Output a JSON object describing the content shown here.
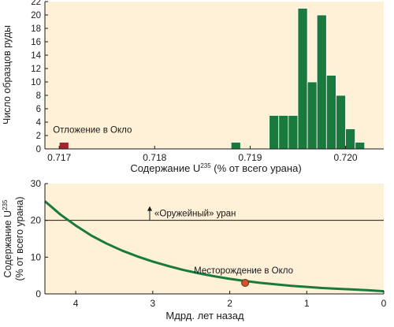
{
  "chart_data": [
    {
      "type": "bar",
      "ylabel": "Число образцов руды",
      "xlabel_prefix": "Содержание U",
      "xlabel_sup": "235",
      "xlabel_suffix": " (% от всего урана)",
      "xlim": [
        0.71685,
        0.7204
      ],
      "ylim": [
        0,
        22
      ],
      "bin_width": 0.0001,
      "x_ticks": [
        "0.717",
        "0.718",
        "0.719",
        "0.720"
      ],
      "x_tick_values": [
        0.717,
        0.718,
        0.719,
        0.72
      ],
      "y_ticks": [
        0,
        2,
        4,
        6,
        8,
        10,
        12,
        14,
        16,
        18,
        20,
        22
      ],
      "grid": false,
      "background": "#fff0d8",
      "series": [
        {
          "color": "#1a7a3e",
          "points": [
            {
              "x": 0.71885,
              "y": 1
            },
            {
              "x": 0.71925,
              "y": 5
            },
            {
              "x": 0.71935,
              "y": 5
            },
            {
              "x": 0.71945,
              "y": 5
            },
            {
              "x": 0.71955,
              "y": 21
            },
            {
              "x": 0.71965,
              "y": 10
            },
            {
              "x": 0.71975,
              "y": 20
            },
            {
              "x": 0.71985,
              "y": 11
            },
            {
              "x": 0.71995,
              "y": 8
            },
            {
              "x": 0.72005,
              "y": 3
            },
            {
              "x": 0.72015,
              "y": 1
            }
          ]
        },
        {
          "color": "#a3242c",
          "points": [
            {
              "x": 0.71705,
              "y": 1
            }
          ]
        }
      ],
      "annotations": [
        {
          "text": "Отложение в Окло",
          "x": 0.71705,
          "y": 1
        }
      ]
    },
    {
      "type": "line",
      "ylabel_prefix": "Содержание U",
      "ylabel_sup": "235",
      "ylabel_line2": "(% от всего урана)",
      "xlabel": "Мдрд. лет назад",
      "xlim": [
        4.4,
        0
      ],
      "ylim": [
        0,
        30
      ],
      "x_ticks": [
        4,
        3,
        2,
        1,
        0
      ],
      "y_ticks": [
        0,
        10,
        20,
        30
      ],
      "grid": false,
      "background": "#fff0d8",
      "curve_color": "#1a7a3e",
      "series": [
        {
          "x": [
            4.4,
            4.2,
            4.0,
            3.8,
            3.6,
            3.4,
            3.2,
            3.0,
            2.8,
            2.6,
            2.4,
            2.2,
            2.0,
            1.8,
            1.6,
            1.4,
            1.2,
            1.0,
            0.8,
            0.6,
            0.4,
            0.2,
            0.0
          ],
          "y": [
            25.2,
            21.6,
            18.6,
            15.9,
            13.7,
            11.8,
            10.2,
            8.8,
            7.6,
            6.5,
            5.6,
            4.8,
            4.1,
            3.5,
            3.0,
            2.6,
            2.2,
            1.9,
            1.6,
            1.4,
            1.2,
            1.0,
            0.72
          ]
        }
      ],
      "reference_line": {
        "y": 20,
        "label": "«Оружейный» уран",
        "color": "#1a1a1a"
      },
      "annotations": [
        {
          "text": "Месторождение в Окло",
          "x": 1.8,
          "y": 3.0,
          "marker_color": "#d2522a"
        }
      ]
    }
  ]
}
